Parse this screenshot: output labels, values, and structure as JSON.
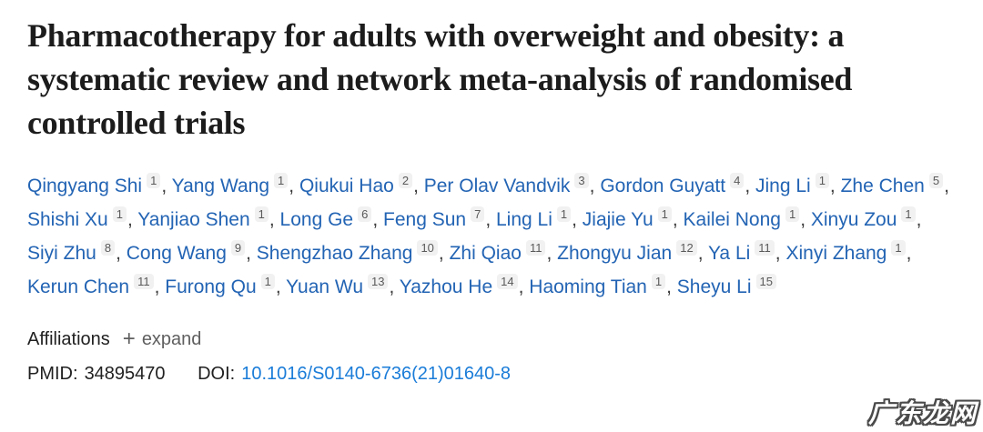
{
  "article": {
    "title": "Pharmacotherapy for adults with overweight and obesity: a systematic review and network meta-analysis of randomised controlled trials",
    "authors": [
      {
        "name": "Qingyang Shi",
        "sup": "1"
      },
      {
        "name": "Yang Wang",
        "sup": "1"
      },
      {
        "name": "Qiukui Hao",
        "sup": "2"
      },
      {
        "name": "Per Olav Vandvik",
        "sup": "3"
      },
      {
        "name": "Gordon Guyatt",
        "sup": "4"
      },
      {
        "name": "Jing Li",
        "sup": "1"
      },
      {
        "name": "Zhe Chen",
        "sup": "5"
      },
      {
        "name": "Shishi Xu",
        "sup": "1"
      },
      {
        "name": "Yanjiao Shen",
        "sup": "1"
      },
      {
        "name": "Long Ge",
        "sup": "6"
      },
      {
        "name": "Feng Sun",
        "sup": "7"
      },
      {
        "name": "Ling Li",
        "sup": "1"
      },
      {
        "name": "Jiajie Yu",
        "sup": "1"
      },
      {
        "name": "Kailei Nong",
        "sup": "1"
      },
      {
        "name": "Xinyu Zou",
        "sup": "1"
      },
      {
        "name": "Siyi Zhu",
        "sup": "8"
      },
      {
        "name": "Cong Wang",
        "sup": "9"
      },
      {
        "name": "Shengzhao Zhang",
        "sup": "10"
      },
      {
        "name": "Zhi Qiao",
        "sup": "11"
      },
      {
        "name": "Zhongyu Jian",
        "sup": "12"
      },
      {
        "name": "Ya Li",
        "sup": "11"
      },
      {
        "name": "Xinyi Zhang",
        "sup": "1"
      },
      {
        "name": "Kerun Chen",
        "sup": "11"
      },
      {
        "name": "Furong Qu",
        "sup": "1"
      },
      {
        "name": "Yuan Wu",
        "sup": "13"
      },
      {
        "name": "Yazhou He",
        "sup": "14"
      },
      {
        "name": "Haoming Tian",
        "sup": "1"
      },
      {
        "name": "Sheyu Li",
        "sup": "15"
      }
    ],
    "author_separator": ", ",
    "affiliations": {
      "label": "Affiliations",
      "expand_icon": "+",
      "expand_label": "expand"
    },
    "identifiers": {
      "pmid_label": "PMID:",
      "pmid": "34895470",
      "doi_label": "DOI:",
      "doi": "10.1016/S0140-6736(21)01640-8"
    }
  },
  "watermark": {
    "text": "广东龙网"
  },
  "colors": {
    "author_link": "#2364b4",
    "doi_link": "#1a7cd8",
    "superscript_bg": "#f1f1f1",
    "superscript_text": "#5a5a5a",
    "title_text": "#1c1c1c"
  }
}
